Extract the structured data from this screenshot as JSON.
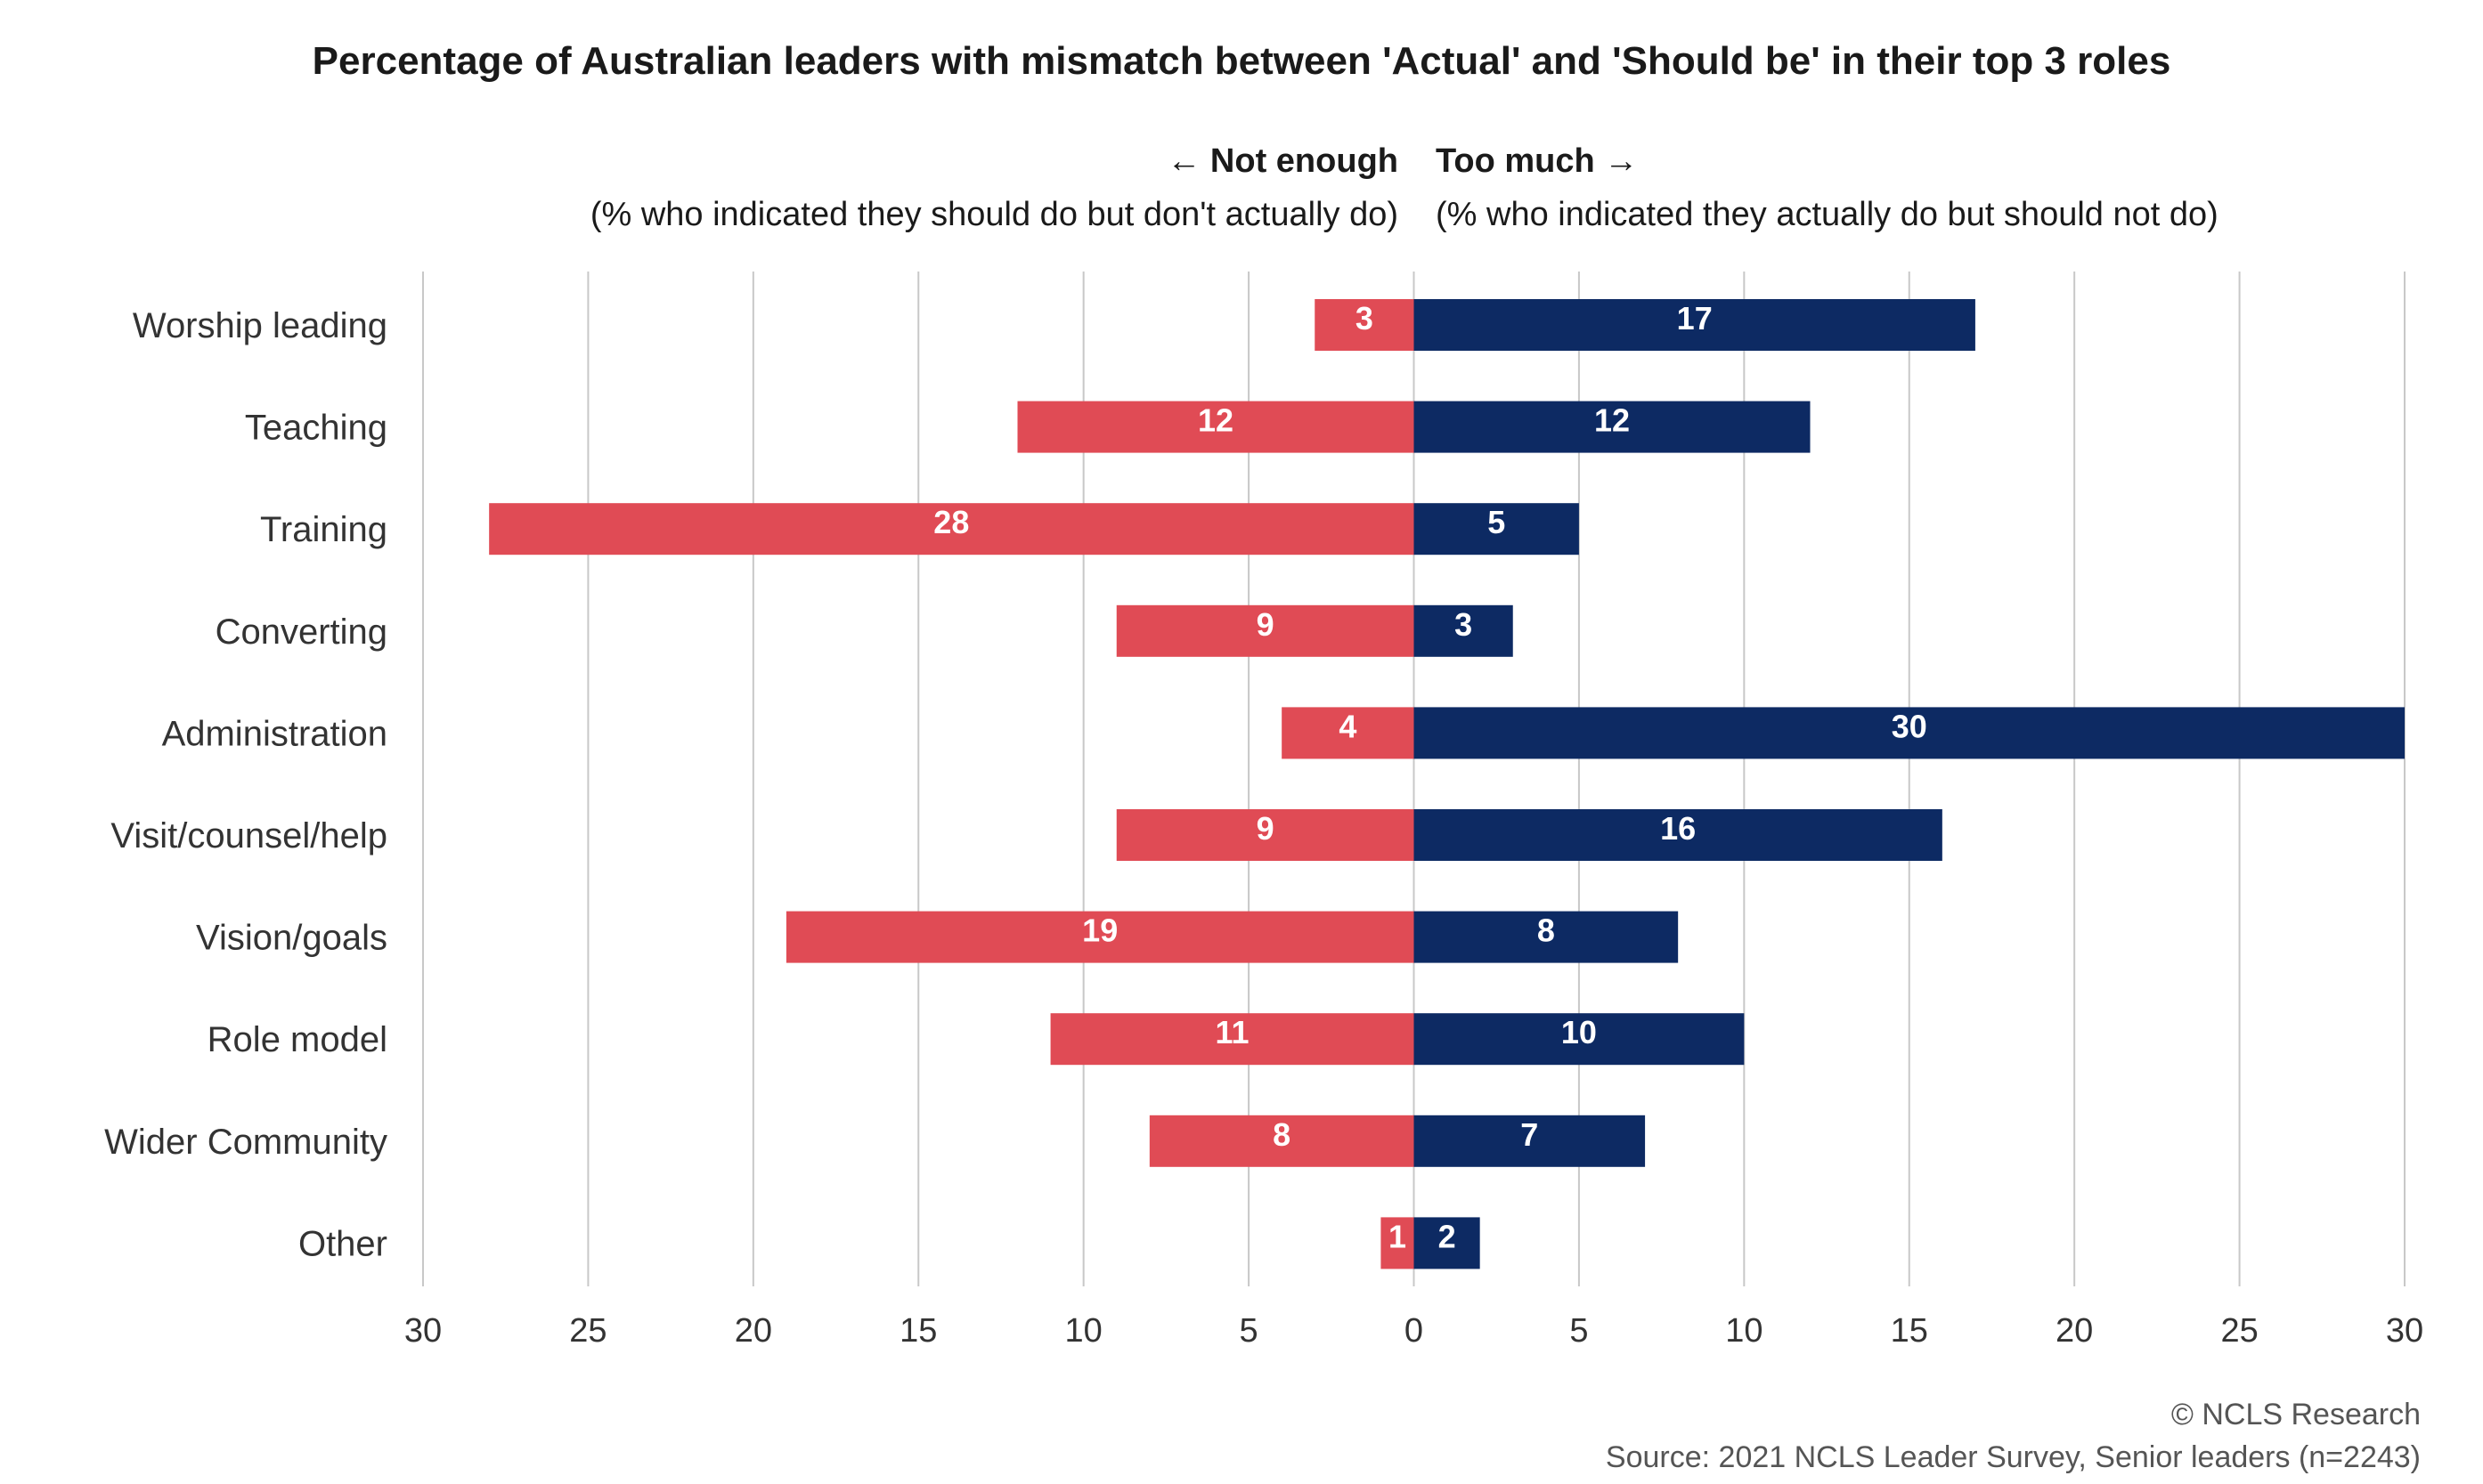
{
  "title": "Percentage of Australian leaders with mismatch between 'Actual' and 'Should be' in their top 3 roles",
  "legend": {
    "left_label": "← Not enough",
    "left_desc": "(% who indicated they should do but don't actually do)",
    "right_label": "Too much →",
    "right_desc": "(% who indicated they actually do but should not do)"
  },
  "footer": {
    "copyright": "© NCLS Research",
    "source": "Source: 2021 NCLS Leader Survey, Senior leaders (n=2243)"
  },
  "chart_data": {
    "type": "bar",
    "orientation": "horizontal-diverging",
    "categories": [
      "Worship leading",
      "Teaching",
      "Training",
      "Converting",
      "Administration",
      "Visit/counsel/help",
      "Vision/goals",
      "Role model",
      "Wider Community",
      "Other"
    ],
    "series": [
      {
        "name": "Not enough",
        "color": "#e04b55",
        "values": [
          3,
          12,
          28,
          9,
          4,
          9,
          19,
          11,
          8,
          1
        ]
      },
      {
        "name": "Too much",
        "color": "#0d2a63",
        "values": [
          17,
          12,
          5,
          3,
          30,
          16,
          8,
          10,
          7,
          2
        ]
      }
    ],
    "xlim": [
      -30,
      30
    ],
    "xticks": [
      "30",
      "25",
      "20",
      "15",
      "10",
      "5",
      "0",
      "5",
      "10",
      "15",
      "20",
      "25",
      "30"
    ],
    "grid": true
  }
}
